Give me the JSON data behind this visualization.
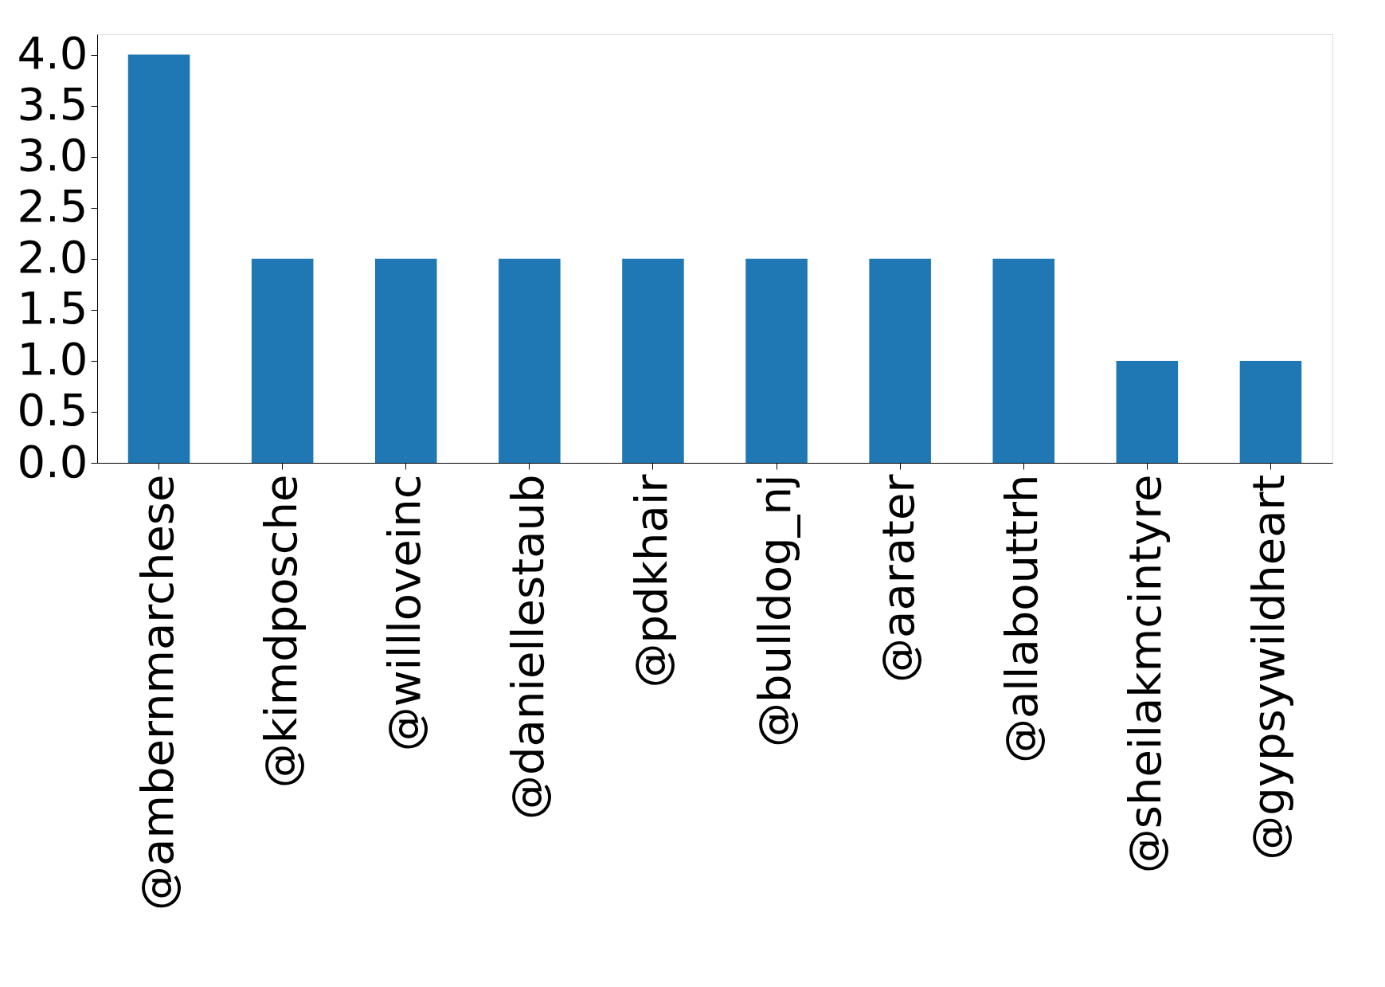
{
  "chart_data": {
    "type": "bar",
    "categories": [
      "@ambernmarchese",
      "@kimdposche",
      "@willloveinc",
      "@daniellestaub",
      "@pdkhair",
      "@bulldog_nj",
      "@aarater",
      "@allabouttrh",
      "@sheilakmcintyre",
      "@gypsywildheart"
    ],
    "values": [
      4,
      2,
      2,
      2,
      2,
      2,
      2,
      2,
      1,
      1
    ],
    "color": "#1f77b4",
    "ylim": [
      0,
      4.2
    ],
    "yticks": [
      {
        "value": 0,
        "label": "0.0"
      },
      {
        "value": 0.5,
        "label": "0.5"
      },
      {
        "value": 1,
        "label": "1.0"
      },
      {
        "value": 1.5,
        "label": "1.5"
      },
      {
        "value": 2,
        "label": "2.0"
      },
      {
        "value": 2.5,
        "label": "2.5"
      },
      {
        "value": 3,
        "label": "3.0"
      },
      {
        "value": 3.5,
        "label": "3.5"
      },
      {
        "value": 4,
        "label": "4.0"
      }
    ],
    "grid": false
  }
}
